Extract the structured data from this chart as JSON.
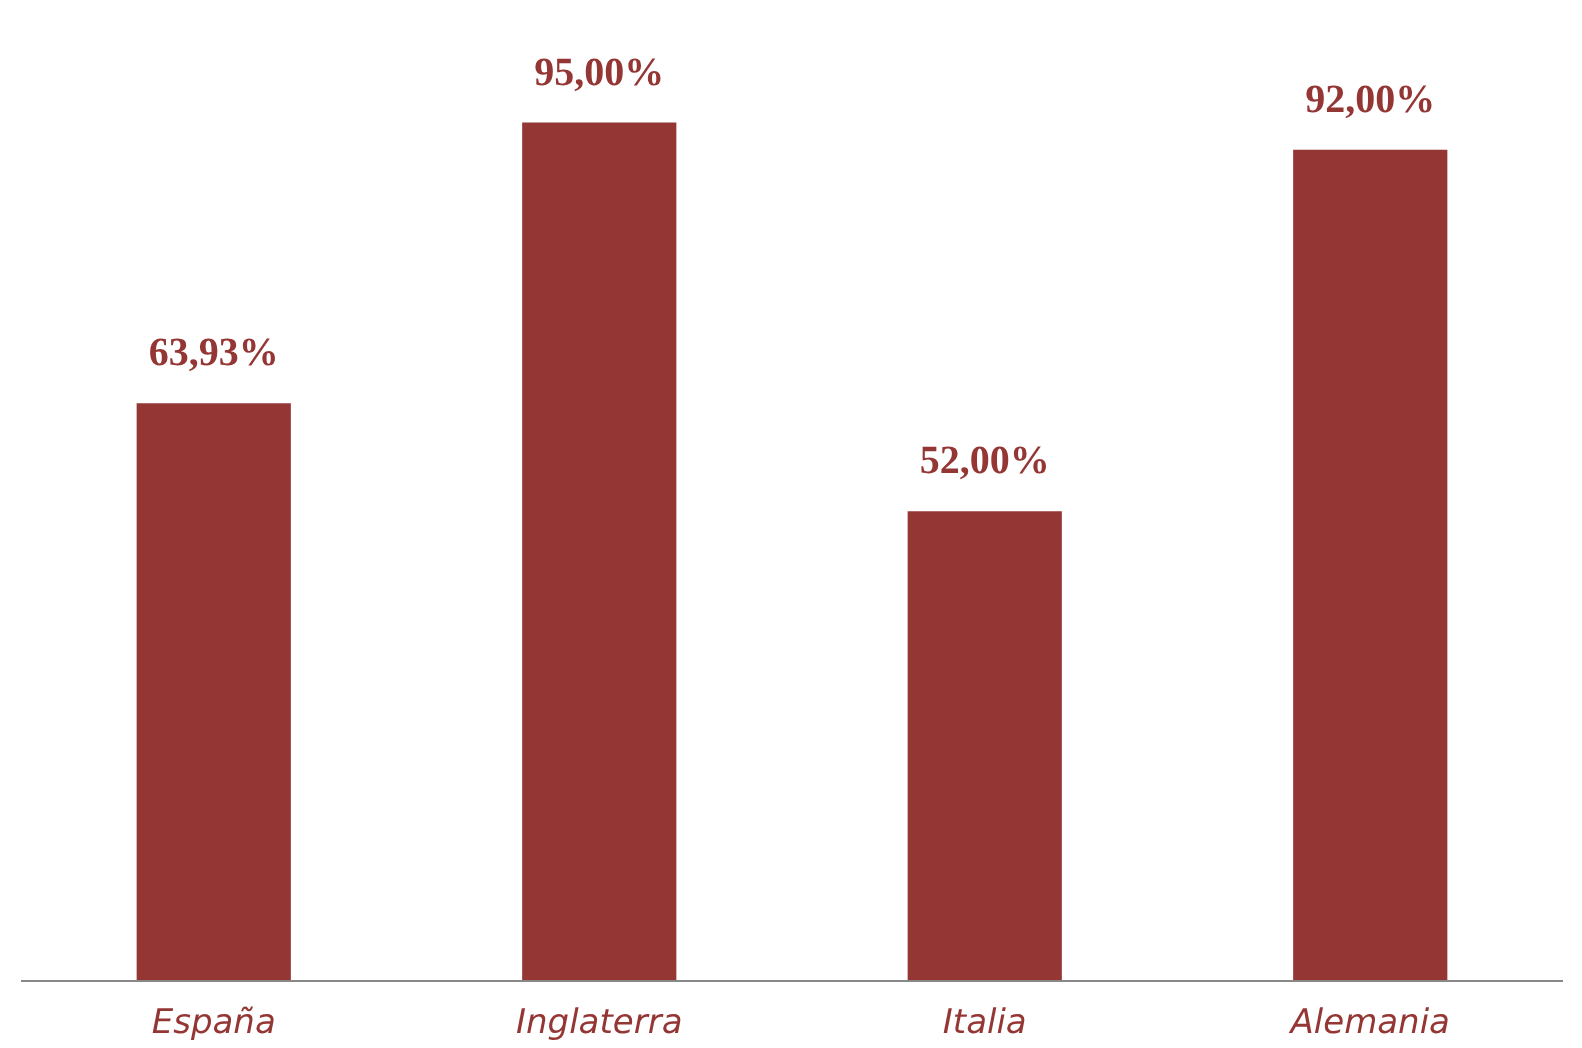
{
  "chart_data": {
    "type": "bar",
    "categories": [
      "España",
      "Inglaterra",
      "Italia",
      "Alemania"
    ],
    "values": [
      63.93,
      95.0,
      52.0,
      92.0
    ],
    "value_labels": [
      "63,93%",
      "95,00%",
      "52,00%",
      "92,00%"
    ],
    "color": "#943634",
    "grid": false
  }
}
